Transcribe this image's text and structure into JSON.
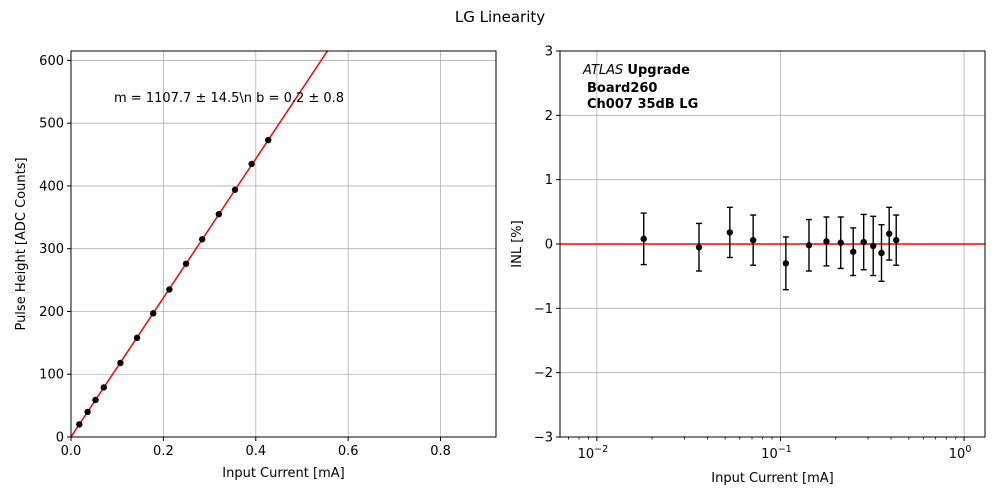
{
  "figure_title": "LG Linearity",
  "chart_data": [
    {
      "type": "scatter",
      "xlabel": "Input Current [mA]",
      "ylabel": "Pulse Height [ADC Counts]",
      "xlim": [
        0,
        0.92
      ],
      "ylim": [
        0,
        615
      ],
      "xticks": [
        0.0,
        0.2,
        0.4,
        0.6,
        0.8
      ],
      "xtick_labels": [
        "0.0",
        "0.2",
        "0.4",
        "0.6",
        "0.8"
      ],
      "yticks": [
        0,
        100,
        200,
        300,
        400,
        500,
        600
      ],
      "ytick_labels": [
        "0",
        "100",
        "200",
        "300",
        "400",
        "500",
        "600"
      ],
      "grid": true,
      "annotation": "m = 1107.7 ± 14.5\\n b = 0.2 ± 0.8",
      "fit_line": {
        "slope": 1107.7,
        "intercept": 0.2,
        "color": "#ff0000"
      },
      "points": {
        "x": [
          0.018,
          0.036,
          0.053,
          0.071,
          0.107,
          0.143,
          0.178,
          0.213,
          0.249,
          0.284,
          0.32,
          0.355,
          0.391,
          0.427
        ],
        "y": [
          20,
          40,
          59,
          79,
          118,
          158,
          197,
          235,
          276,
          315,
          355,
          394,
          435,
          473
        ],
        "color": "#000000"
      }
    },
    {
      "type": "scatter",
      "xlabel": "Input Current [mA]",
      "ylabel": "INL [%]",
      "xscale": "log",
      "xlim": [
        0.0063,
        1.3
      ],
      "ylim": [
        -3,
        3
      ],
      "xticks": [
        0.01,
        0.1,
        1
      ],
      "xtick_labels": [
        {
          "base": "10",
          "exp": "−2"
        },
        {
          "base": "10",
          "exp": "−1"
        },
        {
          "base": "10",
          "exp": "0"
        }
      ],
      "yticks": [
        -3,
        -2,
        -1,
        0,
        1,
        2,
        3
      ],
      "ytick_labels": [
        "−3",
        "−2",
        "−1",
        "0",
        "1",
        "2",
        "3"
      ],
      "grid": true,
      "reference_line": {
        "y": 0,
        "color": "#ff0000"
      },
      "annotation_lines": [
        {
          "italic": "ATLAS",
          "bold": "Upgrade"
        },
        {
          "bold": "Board260"
        },
        {
          "bold": "Ch007 35dB LG"
        }
      ],
      "points": {
        "x": [
          0.018,
          0.036,
          0.053,
          0.071,
          0.107,
          0.143,
          0.178,
          0.213,
          0.249,
          0.284,
          0.32,
          0.355,
          0.391,
          0.427
        ],
        "y": [
          0.08,
          -0.05,
          0.18,
          0.06,
          -0.3,
          -0.02,
          0.04,
          0.02,
          -0.12,
          0.03,
          -0.03,
          -0.14,
          0.16,
          0.06
        ],
        "err": [
          0.4,
          0.37,
          0.39,
          0.39,
          0.41,
          0.4,
          0.38,
          0.4,
          0.37,
          0.43,
          0.46,
          0.44,
          0.41,
          0.39
        ],
        "color": "#000000"
      }
    }
  ]
}
